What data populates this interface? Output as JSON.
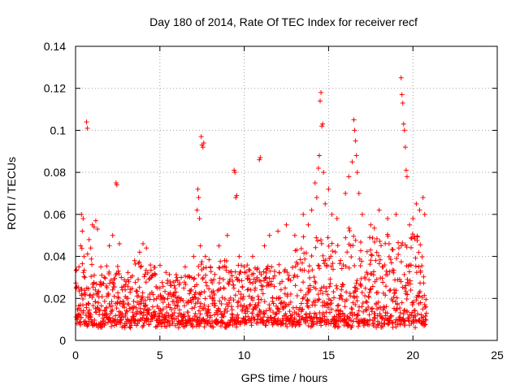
{
  "chart_data": {
    "type": "scatter",
    "title": "Day 180 of 2014, Rate Of TEC Index for receiver recf",
    "xlabel": "GPS time / hours",
    "ylabel": "ROTI / TECUs",
    "xlim": [
      0,
      25
    ],
    "ylim": [
      0,
      0.14
    ],
    "xticks": [
      0,
      5,
      10,
      15,
      20,
      25
    ],
    "xtick_labels": [
      "0",
      "5",
      "10",
      "15",
      "20",
      "25"
    ],
    "yticks": [
      0,
      0.02,
      0.04,
      0.06,
      0.08,
      0.1,
      0.12,
      0.14
    ],
    "ytick_labels": [
      "0",
      "0.02",
      "0.04",
      "0.06",
      "0.08",
      "0.1",
      "0.12",
      "0.14"
    ],
    "grid": true,
    "marker": "plus",
    "color": "#ff0000",
    "series": [
      {
        "points": [
          [
            0.1,
            0.012
          ],
          [
            0.2,
            0.035
          ],
          [
            0.3,
            0.045
          ],
          [
            0.35,
            0.06
          ],
          [
            0.4,
            0.052
          ],
          [
            0.45,
            0.058
          ],
          [
            0.5,
            0.04
          ],
          [
            0.55,
            0.03
          ],
          [
            0.65,
            0.104
          ],
          [
            0.7,
            0.101
          ],
          [
            0.8,
            0.048
          ],
          [
            0.9,
            0.044
          ],
          [
            1.0,
            0.055
          ],
          [
            1.1,
            0.054
          ],
          [
            1.2,
            0.057
          ],
          [
            1.3,
            0.053
          ],
          [
            1.5,
            0.035
          ],
          [
            1.7,
            0.03
          ],
          [
            2.0,
            0.045
          ],
          [
            2.2,
            0.05
          ],
          [
            2.4,
            0.075
          ],
          [
            2.45,
            0.074
          ],
          [
            2.6,
            0.046
          ],
          [
            3.0,
            0.028
          ],
          [
            3.5,
            0.038
          ],
          [
            3.8,
            0.042
          ],
          [
            4.0,
            0.046
          ],
          [
            4.2,
            0.044
          ],
          [
            4.5,
            0.03
          ],
          [
            5.0,
            0.025
          ],
          [
            5.5,
            0.022
          ],
          [
            6.0,
            0.03
          ],
          [
            6.5,
            0.035
          ],
          [
            7.0,
            0.04
          ],
          [
            7.2,
            0.062
          ],
          [
            7.25,
            0.072
          ],
          [
            7.3,
            0.068
          ],
          [
            7.35,
            0.058
          ],
          [
            7.4,
            0.045
          ],
          [
            7.45,
            0.097
          ],
          [
            7.5,
            0.093
          ],
          [
            7.55,
            0.092
          ],
          [
            7.6,
            0.094
          ],
          [
            7.7,
            0.04
          ],
          [
            8.0,
            0.035
          ],
          [
            8.5,
            0.045
          ],
          [
            9.0,
            0.05
          ],
          [
            9.4,
            0.081
          ],
          [
            9.45,
            0.08
          ],
          [
            9.5,
            0.068
          ],
          [
            9.55,
            0.069
          ],
          [
            9.7,
            0.04
          ],
          [
            10.0,
            0.035
          ],
          [
            10.5,
            0.04
          ],
          [
            10.9,
            0.086
          ],
          [
            10.95,
            0.087
          ],
          [
            11.2,
            0.045
          ],
          [
            11.5,
            0.05
          ],
          [
            12.0,
            0.052
          ],
          [
            12.5,
            0.055
          ],
          [
            13.0,
            0.05
          ],
          [
            13.5,
            0.06
          ],
          [
            13.8,
            0.055
          ],
          [
            14.0,
            0.062
          ],
          [
            14.2,
            0.075
          ],
          [
            14.3,
            0.068
          ],
          [
            14.4,
            0.082
          ],
          [
            14.45,
            0.088
          ],
          [
            14.5,
            0.114
          ],
          [
            14.55,
            0.118
          ],
          [
            14.6,
            0.102
          ],
          [
            14.65,
            0.103
          ],
          [
            14.7,
            0.08
          ],
          [
            14.8,
            0.065
          ],
          [
            15.0,
            0.072
          ],
          [
            15.2,
            0.06
          ],
          [
            15.5,
            0.058
          ],
          [
            16.0,
            0.07
          ],
          [
            16.2,
            0.078
          ],
          [
            16.4,
            0.085
          ],
          [
            16.5,
            0.105
          ],
          [
            16.55,
            0.1
          ],
          [
            16.6,
            0.095
          ],
          [
            16.65,
            0.088
          ],
          [
            16.7,
            0.08
          ],
          [
            16.8,
            0.07
          ],
          [
            17.0,
            0.06
          ],
          [
            17.5,
            0.055
          ],
          [
            18.0,
            0.062
          ],
          [
            18.5,
            0.058
          ],
          [
            19.0,
            0.06
          ],
          [
            19.3,
            0.125
          ],
          [
            19.35,
            0.117
          ],
          [
            19.4,
            0.113
          ],
          [
            19.45,
            0.103
          ],
          [
            19.5,
            0.1
          ],
          [
            19.55,
            0.092
          ],
          [
            19.6,
            0.081
          ],
          [
            19.65,
            0.078
          ],
          [
            19.8,
            0.055
          ],
          [
            20.0,
            0.058
          ],
          [
            20.2,
            0.065
          ],
          [
            20.4,
            0.062
          ],
          [
            20.6,
            0.068
          ],
          [
            20.7,
            0.06
          ]
        ]
      }
    ]
  }
}
